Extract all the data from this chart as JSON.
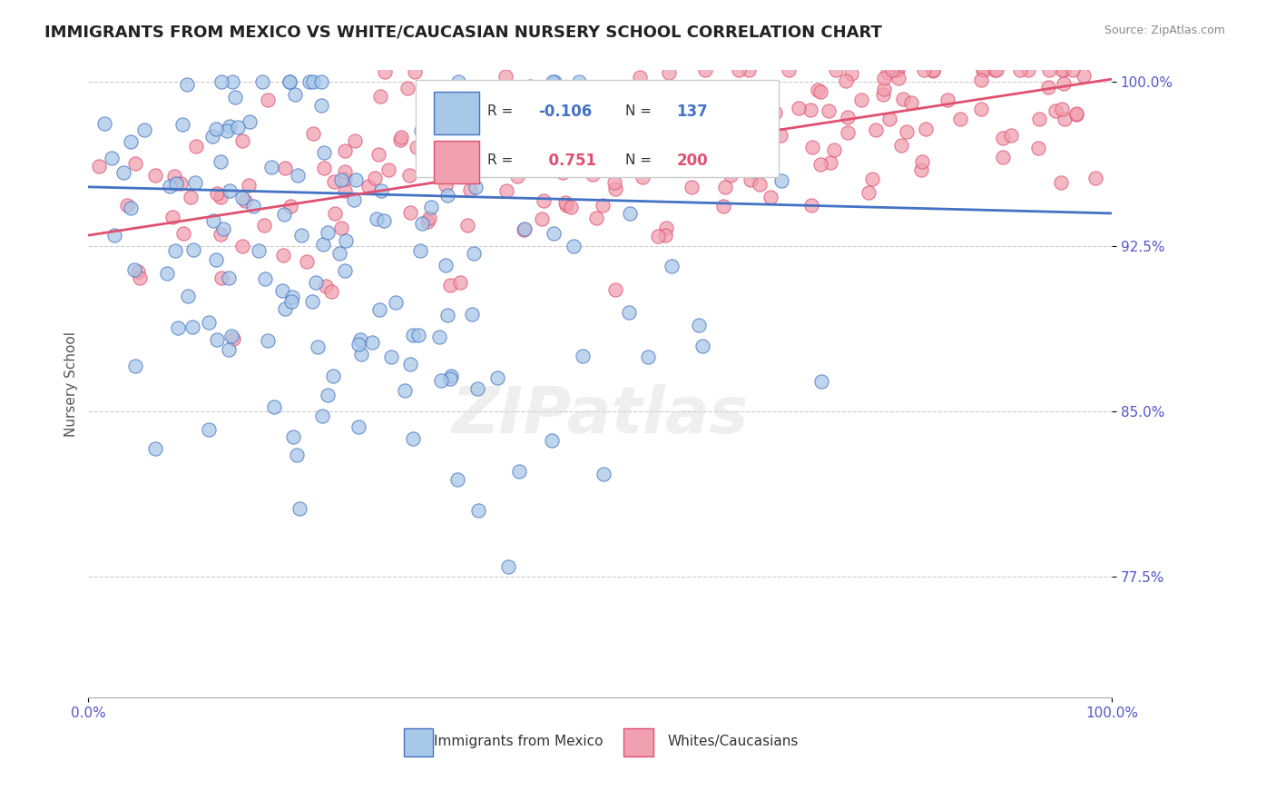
{
  "title": "IMMIGRANTS FROM MEXICO VS WHITE/CAUCASIAN NURSERY SCHOOL CORRELATION CHART",
  "source_text": "Source: ZipAtlas.com",
  "xlabel": "",
  "ylabel": "Nursery School",
  "legend_label_1": "Immigrants from Mexico",
  "legend_label_2": "Whites/Caucasians",
  "r1": -0.106,
  "n1": 137,
  "r2": 0.751,
  "n2": 200,
  "color_blue": "#a8c8e8",
  "color_pink": "#f0a0b0",
  "line_blue": "#4472c4",
  "line_pink": "#e05070",
  "xmin": 0.0,
  "xmax": 1.0,
  "ymin": 0.72,
  "ymax": 1.005,
  "yticks": [
    0.775,
    0.85,
    0.925,
    1.0
  ],
  "ytick_labels": [
    "77.5%",
    "85.0%",
    "92.5%",
    "100.0%"
  ],
  "xtick_labels": [
    "0.0%",
    "100.0%"
  ],
  "watermark": "ZIPatlas",
  "background_color": "#ffffff",
  "title_fontsize": 13,
  "axis_label_color": "#5555cc",
  "grid_color": "#cccccc"
}
